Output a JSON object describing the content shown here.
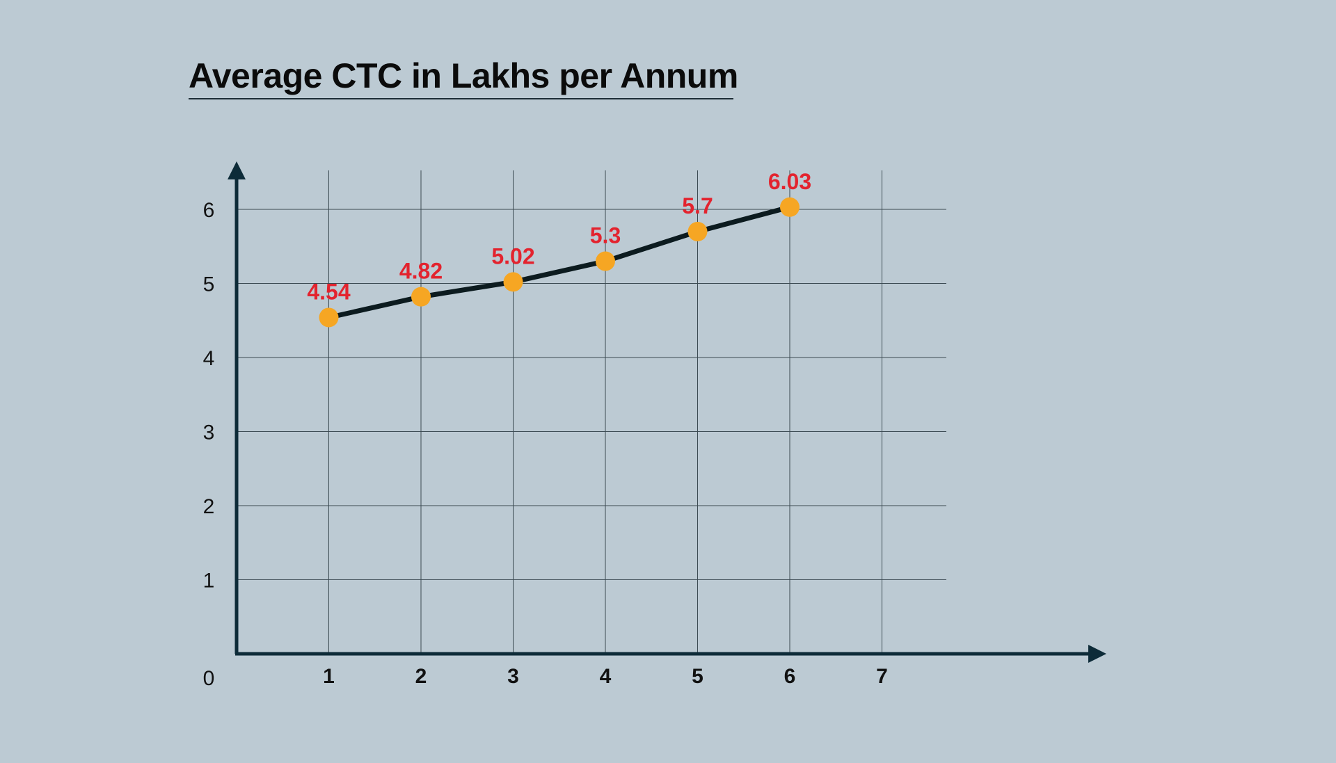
{
  "chart_data": {
    "type": "line",
    "title": "Average CTC in Lakhs per Annum",
    "xlabel": "",
    "ylabel": "",
    "x": [
      1,
      2,
      3,
      4,
      5,
      6
    ],
    "values": [
      4.54,
      4.82,
      5.02,
      5.3,
      5.7,
      6.03
    ],
    "data_labels": [
      "4.54",
      "4.82",
      "5.02",
      "5.3",
      "5.7",
      "6.03"
    ],
    "x_ticks": [
      "1",
      "2",
      "3",
      "4",
      "5",
      "6",
      "7"
    ],
    "y_ticks": [
      "0",
      "1",
      "2",
      "3",
      "4",
      "5",
      "6"
    ],
    "xlim": [
      0,
      7.7
    ],
    "ylim": [
      0,
      6.5
    ],
    "grid": true,
    "legend": "none",
    "colors": {
      "background": "#bccad3",
      "axis": "#0d2b38",
      "grid": "#3b4a52",
      "line": "#0c1b1f",
      "marker": "#f6a623",
      "data_label": "#e3232e"
    }
  }
}
